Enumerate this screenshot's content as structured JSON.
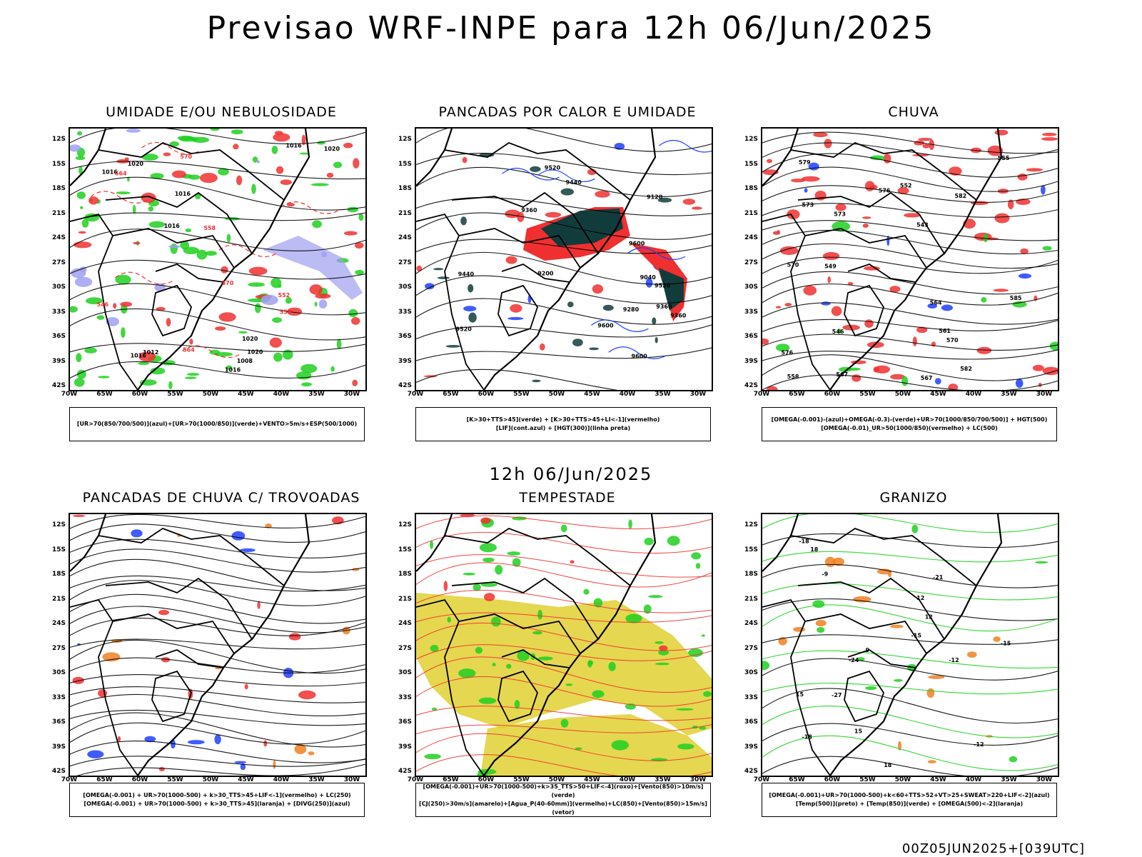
{
  "header": {
    "title": "Previsao WRF-INPE  para 12h 06/Jun/2025"
  },
  "middle": {
    "date": "12h 06/Jun/2025"
  },
  "footer": {
    "code": "00Z05JUN2025+[039UTC]"
  },
  "axes": {
    "lat": [
      "12S",
      "15S",
      "18S",
      "21S",
      "24S",
      "27S",
      "30S",
      "33S",
      "36S",
      "39S",
      "42S"
    ],
    "lon": [
      "70W",
      "65W",
      "60W",
      "55W",
      "50W",
      "45W",
      "40W",
      "35W",
      "30W"
    ]
  },
  "panels": [
    {
      "title": "UMIDADE E/OU NEBULOSIDADE",
      "legend": [
        "[UR>70(850/700/500)](azul)+[UR>70(1000/850)](verde)+VENTO>5m/s+ESP(500/1000)"
      ],
      "labels": [
        "1016",
        "1016",
        "1016",
        "1016",
        "1016",
        "1020",
        "1020",
        "1020",
        "1016",
        "570",
        "570",
        "564",
        "564",
        "558",
        "558",
        "552",
        "546",
        "1012",
        "1008",
        "1020"
      ]
    },
    {
      "title": "PANCADAS POR CALOR E UMIDADE",
      "legend": [
        "[K>30+TTS>45](verde) + [K>30+TTS>45+LI<-1](vermelho)",
        "[LIF](cont.azul) + [HGT(300)](linha preta)"
      ],
      "labels": [
        "9600",
        "9520",
        "9360",
        "9440",
        "9360",
        "9280",
        "9600",
        "9600",
        "9520",
        "9520",
        "9440",
        "9360",
        "9200",
        "9120",
        "9040"
      ]
    },
    {
      "title": "CHUVA",
      "legend": [
        "[OMEGA(-0.001)-(azul)+OMEGA(-0.3)-(verde)+UR>70(1000/850/700/500)] + HGT(500)",
        "[OMEGA(-0.01)_UR>50(1000/850)(vermelho) + LC(500)"
      ],
      "labels": [
        "585",
        "582",
        "582",
        "579",
        "576",
        "573",
        "570",
        "567",
        "576",
        "573",
        "570",
        "567",
        "564",
        "561",
        "558",
        "555",
        "552",
        "549",
        "546",
        "543"
      ]
    },
    {
      "title": "PANCADAS DE CHUVA C/ TROVOADAS",
      "legend": [
        "[OMEGA(-0.001) + UR>70(1000-500) + k>30_TTS>45+LIF<-1](vermelho) + LC(250)",
        "[OMEGA(-0.001) + UR>70(1000-500) + k>30_TTS>45](laranja) + [DIVG(250)](azul)"
      ],
      "labels": []
    },
    {
      "title": "TEMPESTADE",
      "legend": [
        "[OMEGA(-0.001)+UR>70(1000-500)+k>35_TTS>50+LIF<-4](roxo)+[Vento(850)>10m/s](verde)",
        "[CJ(250)>30m/s](amarelo)+[Agua_P(40-60mm)](vermelho)+LC(850)+[Vento(850)>15m/s](vetor)"
      ],
      "labels": []
    },
    {
      "title": "GRANIZO",
      "legend": [
        "[OMEGA(-0.001)+UR>70(1000-500)+k<60+TTS>52+VT>25+SWEAT>220+LIF<-2](azul)",
        "[Temp(500)](preto) + [Temp(850)](verde) + [OMEGA(500)<-2](laranja)"
      ],
      "labels": [
        "-9",
        "-12",
        "-12",
        "-15",
        "-15",
        "-18",
        "-18",
        "-21",
        "-24",
        "-27",
        "9",
        "12",
        "12",
        "15",
        "15",
        "18",
        "18"
      ]
    }
  ],
  "colors": {
    "blue": "#1e40ff",
    "green": "#1fd01f",
    "red": "#f03030",
    "orange": "#f08020",
    "yellow": "#e0d030",
    "purple": "#a0a0f0",
    "teal": "#123c3c"
  }
}
